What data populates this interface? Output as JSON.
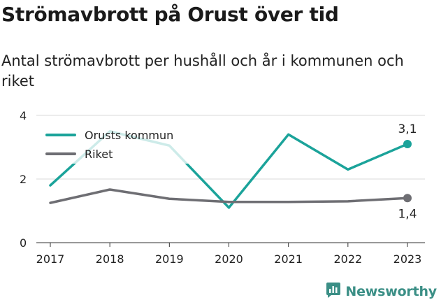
{
  "chart_data": {
    "type": "line",
    "title": "Strömavbrott på Orust över tid",
    "subtitle": "Antal strömavbrott per hushåll och år i kommunen och riket",
    "categories": [
      "2017",
      "2018",
      "2019",
      "2020",
      "2021",
      "2022",
      "2023"
    ],
    "ylim": [
      0,
      4
    ],
    "yticks": [
      "0",
      "2",
      "4"
    ],
    "grid": true,
    "legend_position": "top-left",
    "series": [
      {
        "name": "Orusts kommun",
        "color": "#1ba39a",
        "values": [
          1.8,
          3.5,
          3.05,
          1.1,
          3.4,
          2.3,
          3.1
        ],
        "end_label": "3,1"
      },
      {
        "name": "Riket",
        "color": "#6e6e73",
        "values": [
          1.25,
          1.67,
          1.38,
          1.28,
          1.28,
          1.3,
          1.4
        ],
        "end_label": "1,4"
      }
    ]
  },
  "brand": {
    "name": "Newsworthy",
    "icon": "bar-chart-logo-icon",
    "color": "#3b8f86"
  }
}
